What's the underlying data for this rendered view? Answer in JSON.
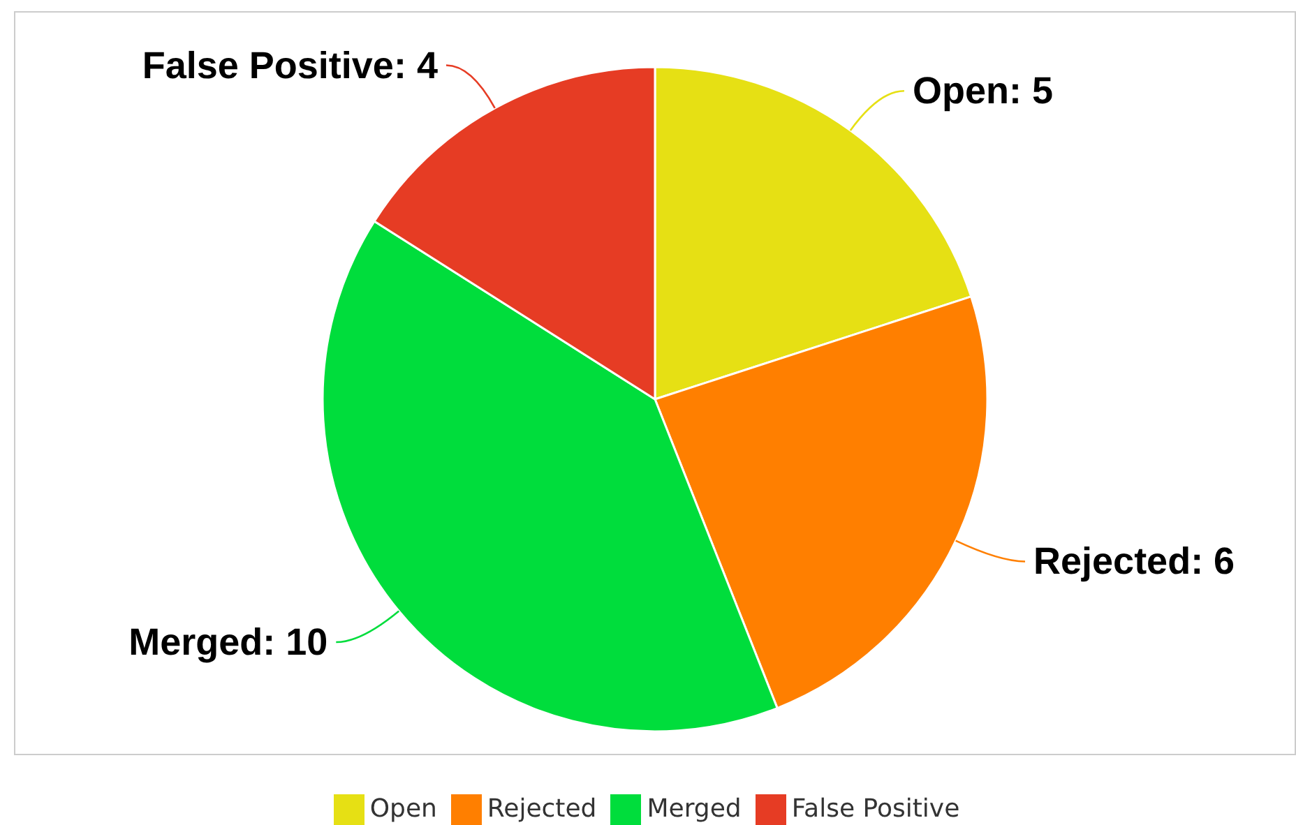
{
  "chart_data": {
    "type": "pie",
    "categories": [
      "Open",
      "Rejected",
      "Merged",
      "False Positive"
    ],
    "values": [
      5,
      6,
      10,
      4
    ],
    "colors": [
      "#e6e014",
      "#ff7f00",
      "#00dd3c",
      "#e63c24"
    ],
    "value_labels": [
      "Open: 5",
      "Rejected: 6",
      "Merged: 10",
      "False Positive: 4"
    ],
    "legend": "bottom"
  }
}
